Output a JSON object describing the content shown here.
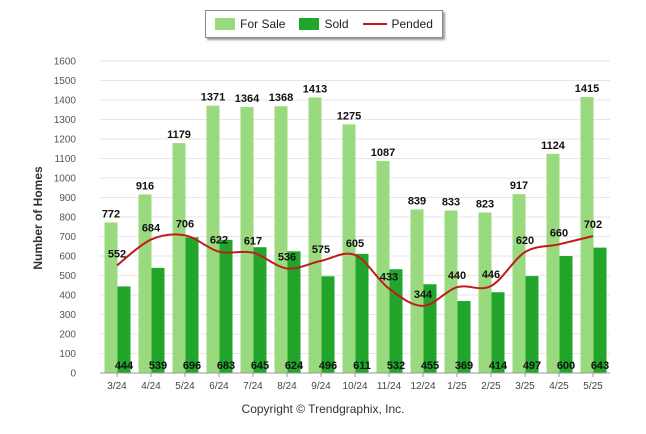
{
  "chart_data": {
    "type": "bar",
    "title": "",
    "xlabel": "",
    "ylabel": "Number of Homes",
    "ylim": [
      0,
      1600
    ],
    "yticks": [
      0,
      100,
      200,
      300,
      400,
      500,
      600,
      700,
      800,
      900,
      1000,
      1100,
      1200,
      1300,
      1400,
      1500,
      1600
    ],
    "grid": true,
    "legend_position": "top-center",
    "categories": [
      "3/24",
      "4/24",
      "5/24",
      "6/24",
      "7/24",
      "8/24",
      "9/24",
      "10/24",
      "11/24",
      "12/24",
      "1/25",
      "2/25",
      "3/25",
      "4/25",
      "5/25"
    ],
    "series": [
      {
        "name": "For Sale",
        "type": "bar",
        "color": "#9ada7f",
        "values": [
          772,
          916,
          1179,
          1371,
          1364,
          1368,
          1413,
          1275,
          1087,
          839,
          833,
          823,
          917,
          1124,
          1415
        ]
      },
      {
        "name": "Sold",
        "type": "bar",
        "color": "#21a52b",
        "values": [
          444,
          539,
          696,
          683,
          645,
          624,
          496,
          611,
          532,
          455,
          369,
          414,
          497,
          600,
          643
        ]
      },
      {
        "name": "Pended",
        "type": "line",
        "color": "#c11c1c",
        "values": [
          552,
          684,
          706,
          622,
          617,
          536,
          575,
          605,
          433,
          344,
          440,
          446,
          620,
          660,
          702
        ]
      }
    ]
  },
  "legend": {
    "for_sale": "For Sale",
    "sold": "Sold",
    "pended": "Pended"
  },
  "footer": {
    "copyright": "Copyright © Trendgraphix, Inc."
  }
}
